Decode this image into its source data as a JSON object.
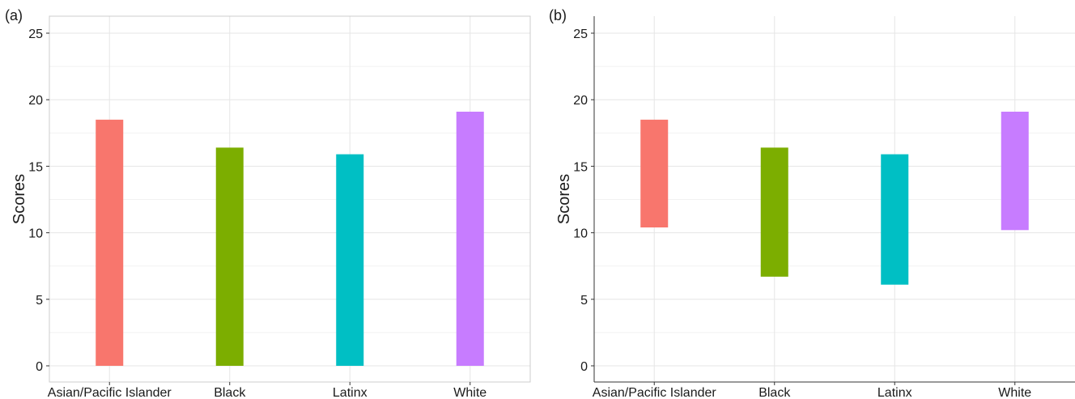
{
  "chart_data": [
    {
      "type": "bar",
      "panel_label": "(a)",
      "ylabel": "Scores",
      "xlabel": "",
      "ylim": [
        0,
        25
      ],
      "y_ticks": [
        0,
        5,
        10,
        15,
        20,
        25
      ],
      "categories": [
        "Asian/Pacific Islander",
        "Black",
        "Latinx",
        "White"
      ],
      "low": [
        0,
        0,
        0,
        0
      ],
      "values": [
        18.5,
        16.4,
        15.9,
        19.1
      ],
      "colors": [
        "#F8766D",
        "#7CAE00",
        "#00BFC4",
        "#C77CFF"
      ],
      "grid": true
    },
    {
      "type": "bar",
      "panel_label": "(b)",
      "ylabel": "Scores",
      "xlabel": "",
      "ylim": [
        0,
        25
      ],
      "y_ticks": [
        0,
        5,
        10,
        15,
        20,
        25
      ],
      "categories": [
        "Asian/Pacific Islander",
        "Black",
        "Latinx",
        "White"
      ],
      "low": [
        10.4,
        6.7,
        6.1,
        10.2
      ],
      "values": [
        18.5,
        16.4,
        15.9,
        19.1
      ],
      "colors": [
        "#F8766D",
        "#7CAE00",
        "#00BFC4",
        "#C77CFF"
      ],
      "grid": true
    }
  ]
}
